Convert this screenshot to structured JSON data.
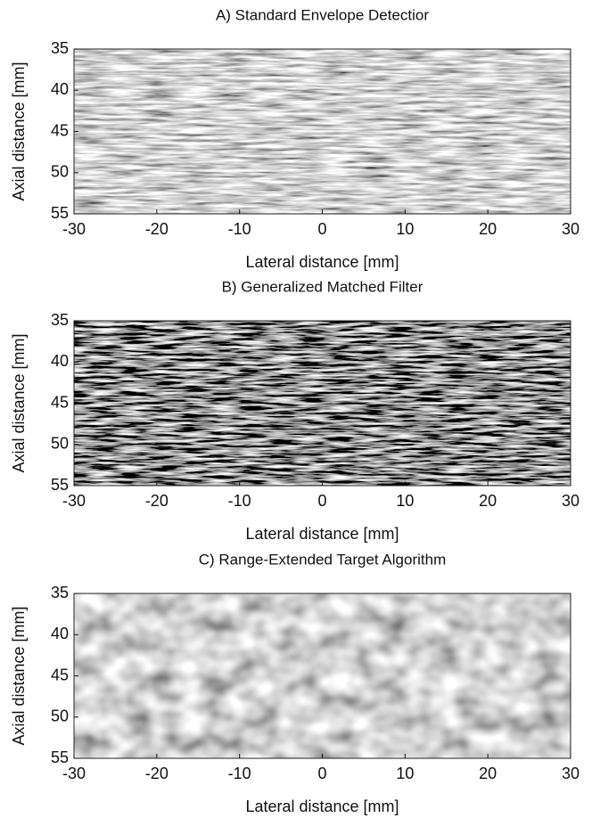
{
  "chart_data": [
    {
      "type": "image",
      "title": "A) Standard Envelope Detectior",
      "xlabel": "Lateral distance [mm]",
      "ylabel": "Axial distance [mm]",
      "xlim": [
        -30,
        30
      ],
      "xticks": [
        -30,
        -20,
        -10,
        0,
        10,
        20,
        30
      ],
      "ylim": [
        55,
        35
      ],
      "yticks": [
        35,
        40,
        45,
        50,
        55
      ],
      "colormap": "gray"
    },
    {
      "type": "image",
      "title": "B) Generalized Matched Filter",
      "xlabel": "Lateral distance [mm]",
      "ylabel": "Axial distance [mm]",
      "xlim": [
        -30,
        30
      ],
      "xticks": [
        -30,
        -20,
        -10,
        0,
        10,
        20,
        30
      ],
      "ylim": [
        55,
        35
      ],
      "yticks": [
        35,
        40,
        45,
        50,
        55
      ],
      "colormap": "gray"
    },
    {
      "type": "image",
      "title": "C) Range-Extended Target Algorithm",
      "xlabel": "Lateral distance [mm]",
      "ylabel": "Axial distance [mm]",
      "xlim": [
        -30,
        30
      ],
      "xticks": [
        -30,
        -20,
        -10,
        0,
        10,
        20,
        30
      ],
      "ylim": [
        55,
        35
      ],
      "yticks": [
        35,
        40,
        45,
        50,
        55
      ],
      "colormap": "gray"
    }
  ]
}
